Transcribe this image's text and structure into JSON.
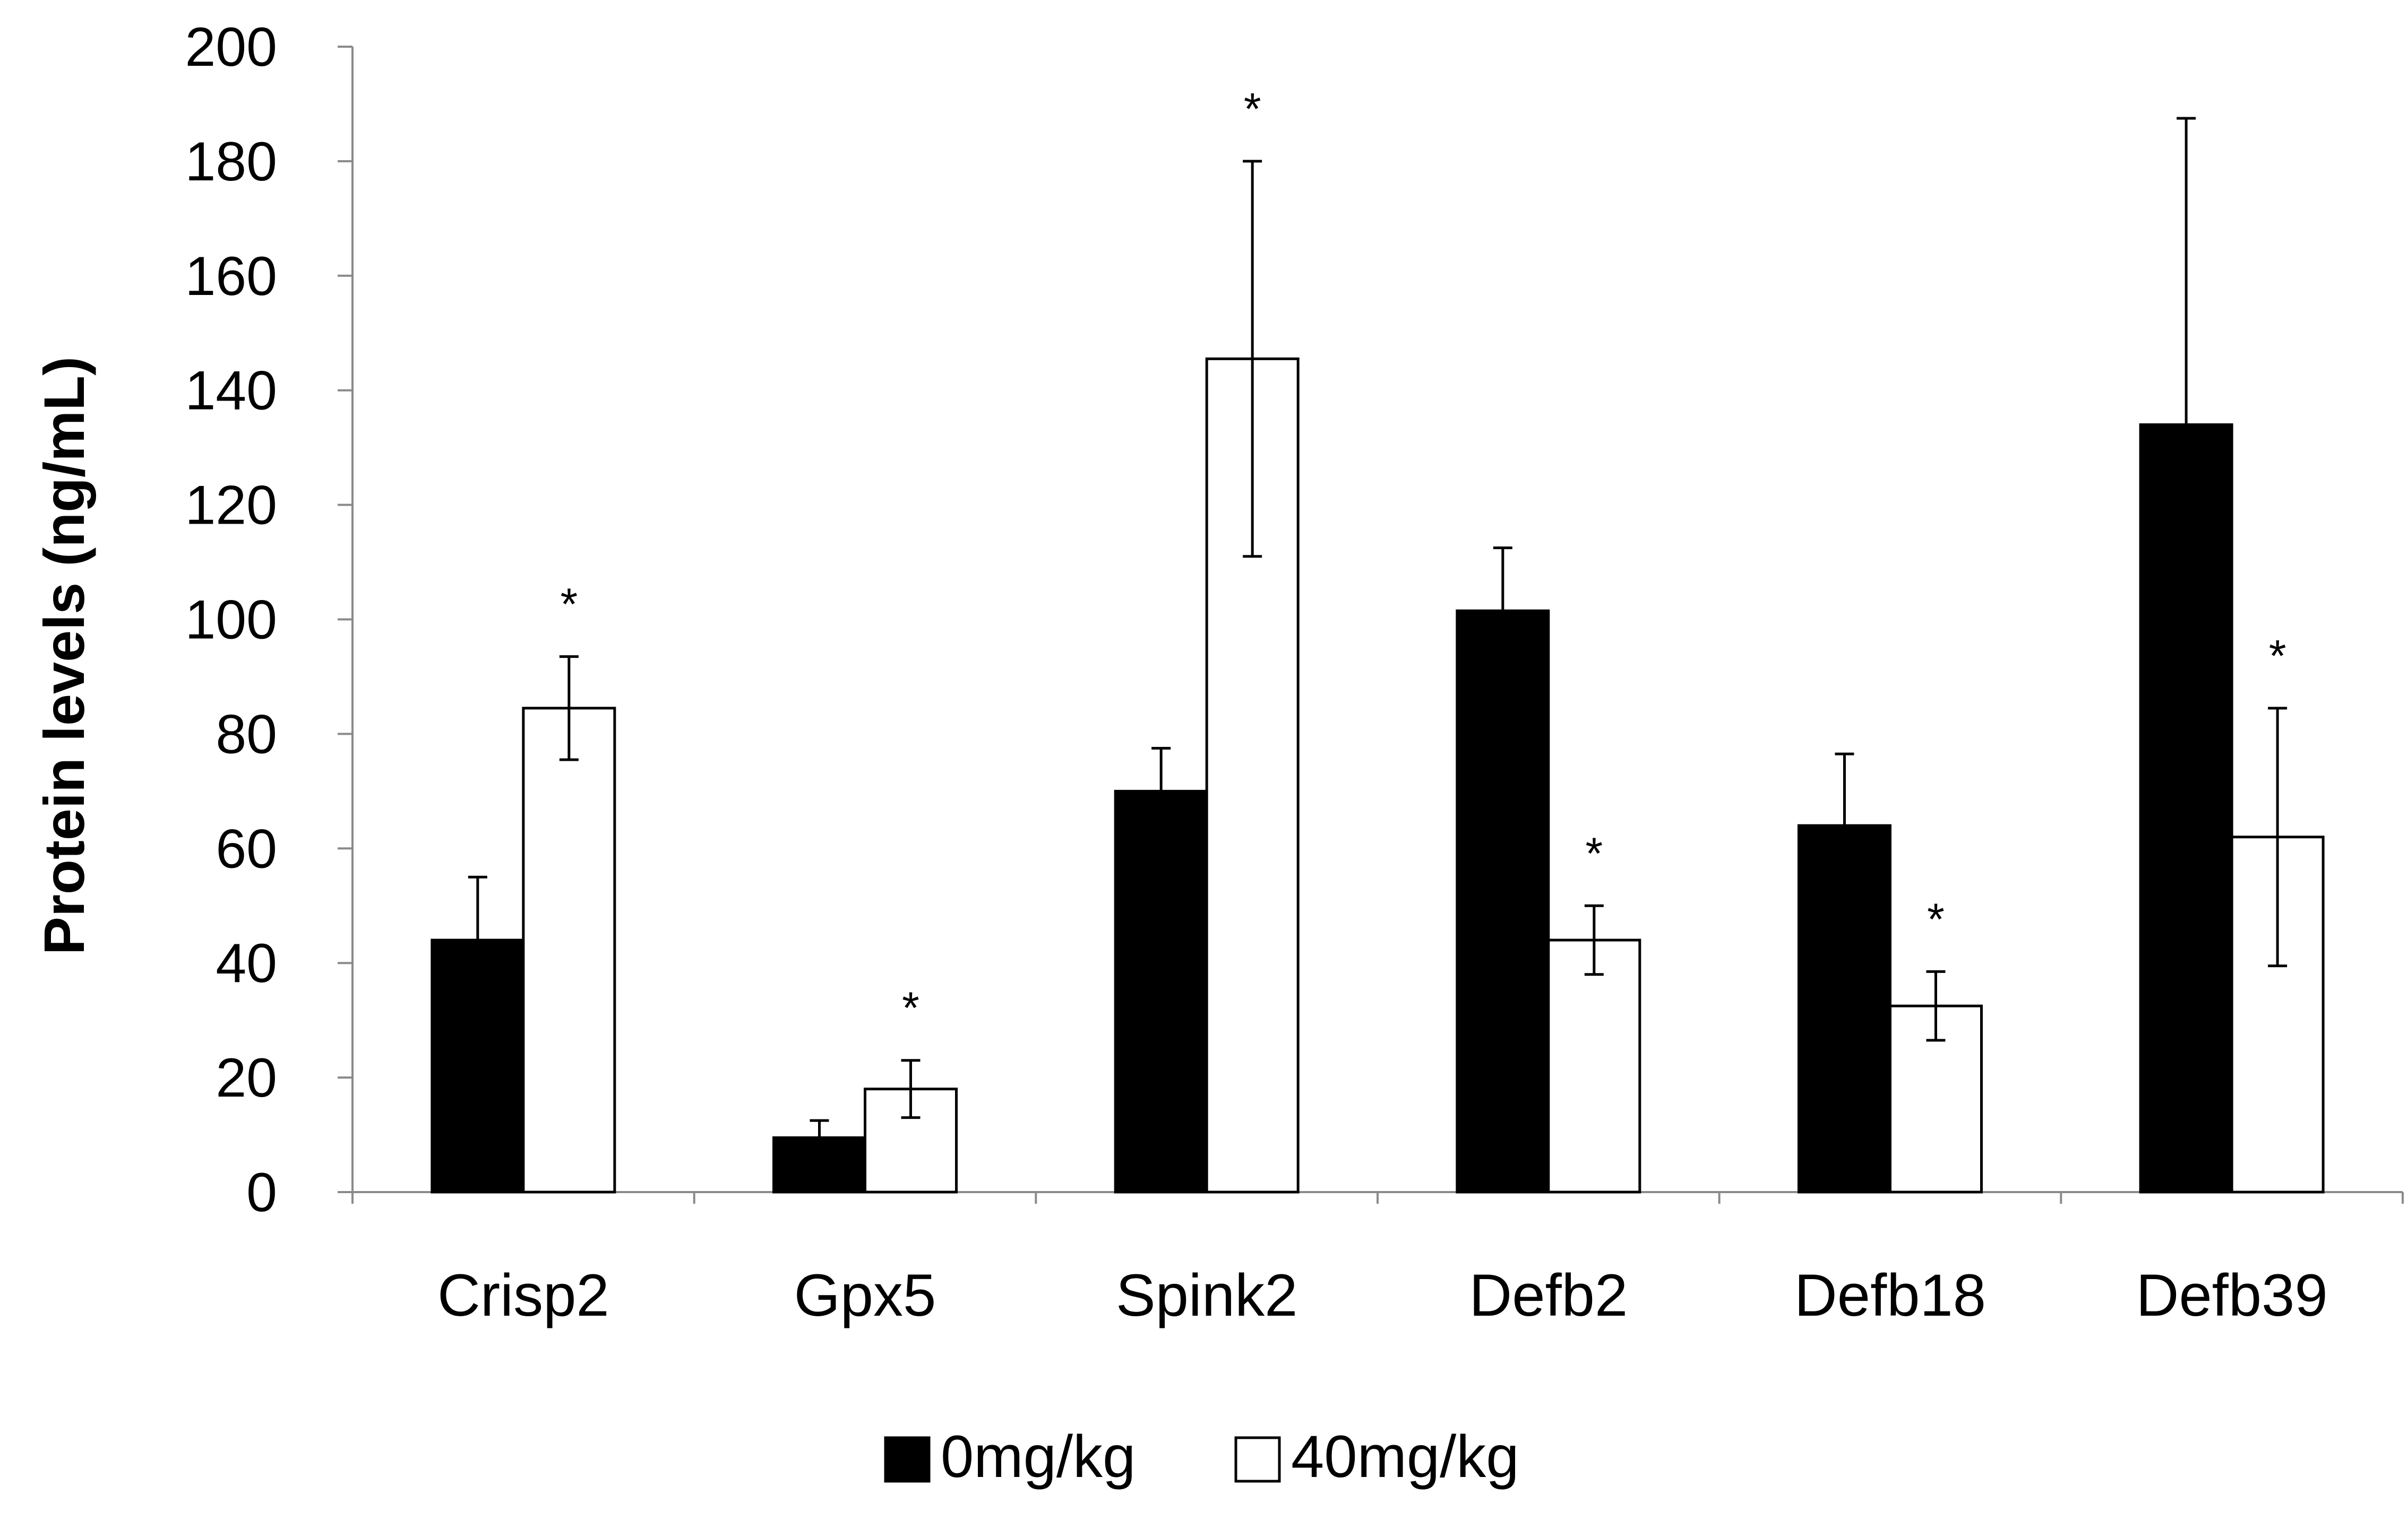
{
  "chart_data": {
    "type": "bar",
    "title": "",
    "xlabel": "",
    "ylabel": "Protein levels  (ng/mL)",
    "ylim": [
      0,
      200
    ],
    "yticks": [
      "0",
      "20",
      "40",
      "60",
      "80",
      "100",
      "120",
      "140",
      "160",
      "180",
      "200"
    ],
    "categories": [
      "Crisp2",
      "Gpx5",
      "Spink2",
      "Defb2",
      "Defb18",
      "Defb39"
    ],
    "series": [
      {
        "name": "0mg/kg",
        "color": "#000000",
        "values": [
          44,
          9.5,
          70,
          101.5,
          64,
          134
        ],
        "errors": [
          11,
          3,
          7.5,
          11,
          12.5,
          53.5
        ],
        "significance": [
          "",
          "",
          "",
          "",
          "",
          ""
        ]
      },
      {
        "name": "40mg/kg",
        "color": "#ffffff",
        "values": [
          84.5,
          18,
          145.5,
          44,
          32.5,
          62
        ],
        "errors": [
          9,
          5,
          34.5,
          6,
          6,
          22.5
        ],
        "significance": [
          "*",
          "*",
          "*",
          "*",
          "*",
          "*"
        ]
      }
    ],
    "legend": {
      "position": "bottom-center",
      "entries": [
        "0mg/kg",
        "40mg/kg"
      ]
    },
    "grid": false
  }
}
